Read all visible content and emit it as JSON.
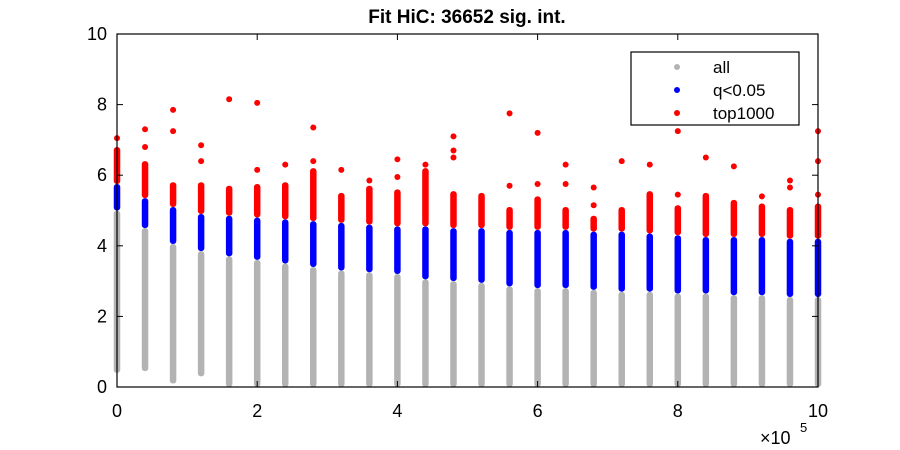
{
  "chart_data": {
    "type": "scatter",
    "title": "Fit HiC: 36652 sig. int.",
    "xlabel": "",
    "ylabel": "",
    "x_multiplier_label": "×10",
    "x_multiplier_exp": "5",
    "xlim": [
      0,
      10
    ],
    "ylim": [
      0,
      10
    ],
    "xticks": [
      0,
      2,
      4,
      6,
      8,
      10
    ],
    "yticks": [
      0,
      2,
      4,
      6,
      8,
      10
    ],
    "xtick_labels": [
      "0",
      "2",
      "4",
      "6",
      "8",
      "10"
    ],
    "ytick_labels": [
      "0",
      "2",
      "4",
      "6",
      "8",
      "10"
    ],
    "legend_position": "top-right",
    "grid": false,
    "colors": {
      "all": "#b3b3b3",
      "q": "#0000ff",
      "top": "#ff0000"
    },
    "series": [
      {
        "name": "all"
      },
      {
        "name": "q<0.05"
      },
      {
        "name": "top1000"
      }
    ],
    "bins": [
      {
        "x": 0.0,
        "all": [
          0.4,
          5.0
        ],
        "q": [
          5.0,
          5.75
        ],
        "top": [
          5.75,
          6.8
        ],
        "outliers": [
          7.05
        ]
      },
      {
        "x": 0.4,
        "all": [
          0.45,
          4.5
        ],
        "q": [
          4.5,
          5.35
        ],
        "top": [
          5.35,
          6.4
        ],
        "outliers": [
          6.8,
          7.3
        ]
      },
      {
        "x": 0.8,
        "all": [
          0.1,
          4.05
        ],
        "q": [
          4.05,
          5.1
        ],
        "top": [
          5.1,
          5.8
        ],
        "outliers": [
          7.25,
          7.85
        ]
      },
      {
        "x": 1.2,
        "all": [
          0.3,
          3.85
        ],
        "q": [
          3.85,
          4.9
        ],
        "top": [
          4.9,
          5.8
        ],
        "outliers": [
          6.4,
          6.85
        ]
      },
      {
        "x": 1.6,
        "all": [
          0.0,
          3.7
        ],
        "q": [
          3.7,
          4.85
        ],
        "top": [
          4.85,
          5.7
        ],
        "outliers": [
          8.15
        ]
      },
      {
        "x": 2.0,
        "all": [
          0.0,
          3.6
        ],
        "q": [
          3.6,
          4.8
        ],
        "top": [
          4.8,
          5.75
        ],
        "outliers": [
          6.15,
          8.05
        ]
      },
      {
        "x": 2.4,
        "all": [
          0.0,
          3.5
        ],
        "q": [
          3.5,
          4.75
        ],
        "top": [
          4.75,
          5.8
        ],
        "outliers": [
          6.3
        ]
      },
      {
        "x": 2.8,
        "all": [
          0.0,
          3.4
        ],
        "q": [
          3.4,
          4.7
        ],
        "top": [
          4.7,
          6.2
        ],
        "outliers": [
          6.4,
          7.35
        ]
      },
      {
        "x": 3.2,
        "all": [
          0.0,
          3.3
        ],
        "q": [
          3.3,
          4.65
        ],
        "top": [
          4.65,
          5.5
        ],
        "outliers": [
          6.15
        ]
      },
      {
        "x": 3.6,
        "all": [
          0.0,
          3.25
        ],
        "q": [
          3.25,
          4.6
        ],
        "top": [
          4.6,
          5.7
        ],
        "outliers": [
          5.85
        ]
      },
      {
        "x": 4.0,
        "all": [
          0.0,
          3.2
        ],
        "q": [
          3.2,
          4.55
        ],
        "top": [
          4.55,
          5.6
        ],
        "outliers": [
          5.95,
          6.45
        ]
      },
      {
        "x": 4.4,
        "all": [
          0.0,
          3.05
        ],
        "q": [
          3.05,
          4.55
        ],
        "top": [
          4.55,
          6.2
        ],
        "outliers": [
          6.3
        ]
      },
      {
        "x": 4.8,
        "all": [
          0.0,
          3.0
        ],
        "q": [
          3.0,
          4.5
        ],
        "top": [
          4.5,
          5.55
        ],
        "outliers": [
          6.5,
          6.7,
          7.1
        ]
      },
      {
        "x": 5.2,
        "all": [
          0.0,
          2.95
        ],
        "q": [
          2.95,
          4.5
        ],
        "top": [
          4.5,
          5.5
        ],
        "outliers": []
      },
      {
        "x": 5.6,
        "all": [
          0.0,
          2.85
        ],
        "q": [
          2.85,
          4.45
        ],
        "top": [
          4.45,
          5.1
        ],
        "outliers": [
          5.7,
          7.75
        ]
      },
      {
        "x": 6.0,
        "all": [
          0.0,
          2.8
        ],
        "q": [
          2.8,
          4.45
        ],
        "top": [
          4.45,
          5.4
        ],
        "outliers": [
          5.75,
          7.2
        ]
      },
      {
        "x": 6.4,
        "all": [
          0.0,
          2.8
        ],
        "q": [
          2.8,
          4.45
        ],
        "top": [
          4.45,
          5.1
        ],
        "outliers": [
          5.75,
          6.3
        ]
      },
      {
        "x": 6.8,
        "all": [
          0.0,
          2.75
        ],
        "q": [
          2.75,
          4.4
        ],
        "top": [
          4.4,
          4.85
        ],
        "outliers": [
          5.15,
          5.65
        ]
      },
      {
        "x": 7.2,
        "all": [
          0.0,
          2.7
        ],
        "q": [
          2.7,
          4.4
        ],
        "top": [
          4.4,
          5.1
        ],
        "outliers": [
          6.4
        ]
      },
      {
        "x": 7.6,
        "all": [
          0.0,
          2.7
        ],
        "q": [
          2.7,
          4.35
        ],
        "top": [
          4.35,
          5.55
        ],
        "outliers": [
          6.3
        ]
      },
      {
        "x": 8.0,
        "all": [
          0.0,
          2.65
        ],
        "q": [
          2.65,
          4.3
        ],
        "top": [
          4.3,
          5.15
        ],
        "outliers": [
          5.45,
          7.25
        ]
      },
      {
        "x": 8.4,
        "all": [
          0.0,
          2.65
        ],
        "q": [
          2.65,
          4.25
        ],
        "top": [
          4.25,
          5.5
        ],
        "outliers": [
          6.5
        ]
      },
      {
        "x": 8.8,
        "all": [
          0.0,
          2.6
        ],
        "q": [
          2.6,
          4.25
        ],
        "top": [
          4.25,
          5.3
        ],
        "outliers": [
          6.25
        ]
      },
      {
        "x": 9.2,
        "all": [
          0.0,
          2.6
        ],
        "q": [
          2.6,
          4.25
        ],
        "top": [
          4.25,
          5.2
        ],
        "outliers": [
          5.4
        ]
      },
      {
        "x": 9.6,
        "all": [
          0.0,
          2.55
        ],
        "q": [
          2.55,
          4.2
        ],
        "top": [
          4.2,
          5.1
        ],
        "outliers": [
          5.65,
          5.85
        ]
      },
      {
        "x": 10.0,
        "all": [
          0.0,
          2.55
        ],
        "q": [
          2.55,
          4.2
        ],
        "top": [
          4.2,
          5.2
        ],
        "outliers": [
          5.45,
          6.4,
          7.25
        ]
      }
    ]
  }
}
